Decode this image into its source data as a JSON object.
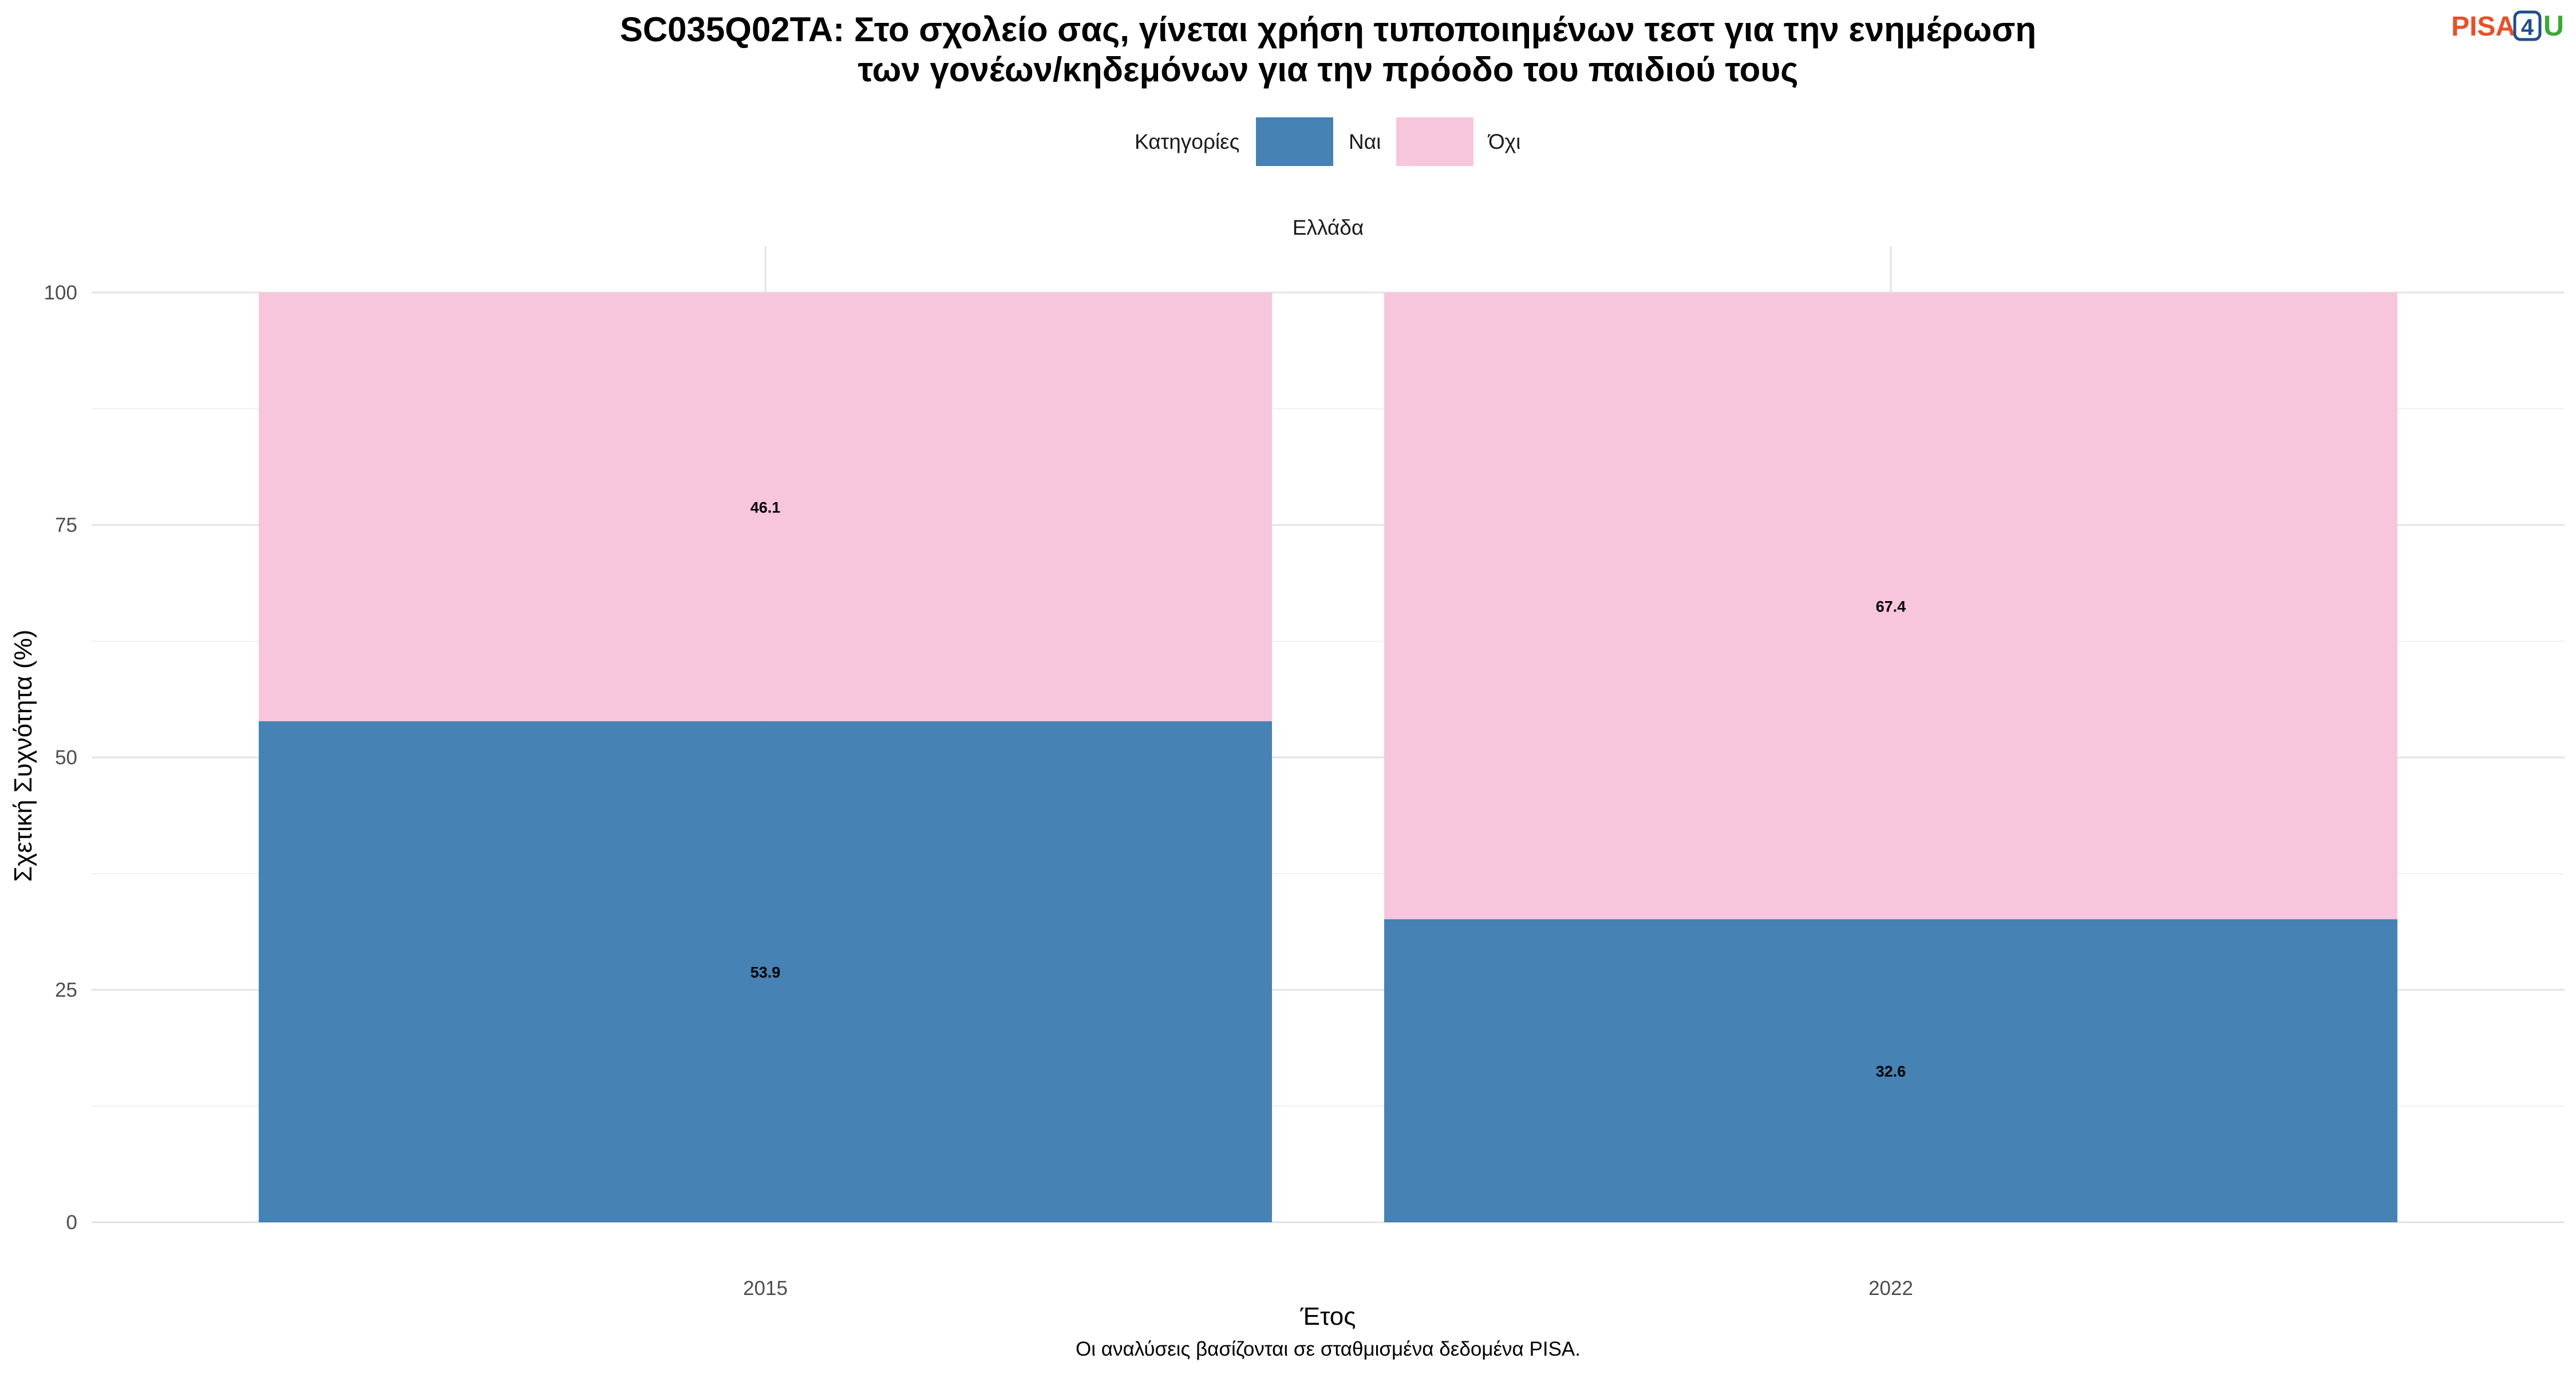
{
  "chart_data": {
    "type": "bar",
    "stacked": true,
    "title_lines": [
      "SC035Q02TA: Στο σχολείο σας, γίνεται χρήση τυποποιημένων τεστ για την ενημέρωση",
      "των γονέων/κηδεμόνων για την πρόοδο του παιδιού τους"
    ],
    "facet": "Ελλάδα",
    "categories": [
      "2015",
      "2022"
    ],
    "series": [
      {
        "name": "Ναι",
        "values": [
          53.9,
          32.6
        ],
        "color": "#4682b4"
      },
      {
        "name": "Όχι",
        "values": [
          46.1,
          67.4
        ],
        "color": "#f7c6dc"
      }
    ],
    "legend": {
      "title": "Κατηγορίες",
      "position": "top"
    },
    "xlabel": "Έτος",
    "ylabel": "Σχετική Συχνότητα (%)",
    "ylim": [
      0,
      100
    ],
    "yticks": [
      0,
      25,
      50,
      75,
      100
    ],
    "grid": true,
    "caption": "Οι αναλύσεις βασίζονται σε σταθμισμένα δεδομένα PISA."
  },
  "logo": {
    "text_left": "PISA",
    "text_digit": "4",
    "text_right": "U",
    "color_left": "#e8502a",
    "color_digit": "#1f4e8c",
    "color_right": "#3aaa35"
  }
}
